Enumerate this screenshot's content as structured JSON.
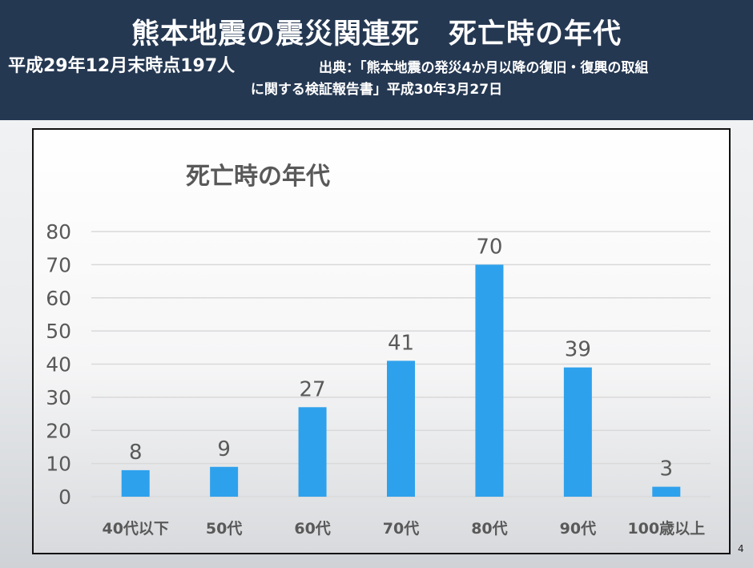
{
  "header": {
    "title": "熊本地震の震災関連死　死亡時の年代",
    "subtitle": "平成29年12月末時点197人",
    "source_line1": "出典：「熊本地震の発災4か月以降の復旧・復興の取組",
    "source_line2": "に関する検証報告書」平成30年3月27日"
  },
  "page_number": "4",
  "colors": {
    "header_bg": "#253852",
    "bar": "#2ea1ec",
    "grid": "#d9d9d9",
    "text": "#595959"
  },
  "chart_data": {
    "type": "bar",
    "title": "死亡時の年代",
    "categories": [
      "40代以下",
      "50代",
      "60代",
      "70代",
      "80代",
      "90代",
      "100歳以上"
    ],
    "values": [
      8,
      9,
      27,
      41,
      70,
      39,
      3
    ],
    "data_labels": [
      "8",
      "9",
      "27",
      "41",
      "70",
      "39",
      "3"
    ],
    "y_ticks": [
      "0",
      "10",
      "20",
      "30",
      "40",
      "50",
      "60",
      "70",
      "80"
    ],
    "ylim": [
      0,
      80
    ],
    "grid": true,
    "legend": "none",
    "xlabel": "",
    "ylabel": ""
  }
}
